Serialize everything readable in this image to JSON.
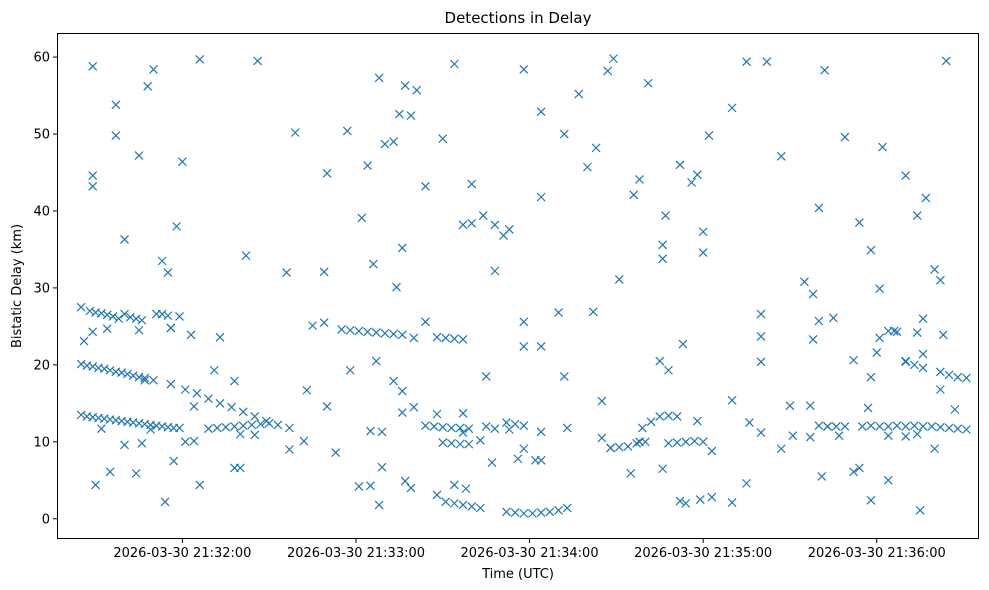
{
  "chart_data": {
    "type": "scatter",
    "title": "Detections in Delay",
    "xlabel": "Time (UTC)",
    "ylabel": "Bistatic Delay (km)",
    "marker": "x",
    "color": "#1f77b4",
    "grid": false,
    "legend": "none",
    "xlim": [
      "2026-03-30 21:31:17",
      "2026-03-30 21:36:35"
    ],
    "ylim": [
      -2.5,
      63
    ],
    "x_ticks": [
      "2026-03-30 21:32:00",
      "2026-03-30 21:33:00",
      "2026-03-30 21:34:00",
      "2026-03-30 21:35:00",
      "2026-03-30 21:36:00"
    ],
    "y_ticks": [
      0,
      10,
      20,
      30,
      40,
      50,
      60
    ],
    "points": [
      [
        "21:31:25",
        27.5
      ],
      [
        "21:31:28",
        27.0
      ],
      [
        "21:31:30",
        26.8
      ],
      [
        "21:31:32",
        26.7
      ],
      [
        "21:31:34",
        26.5
      ],
      [
        "21:31:36",
        26.3
      ],
      [
        "21:31:38",
        26.0
      ],
      [
        "21:31:40",
        26.6
      ],
      [
        "21:31:42",
        26.2
      ],
      [
        "21:31:44",
        26.0
      ],
      [
        "21:31:46",
        25.8
      ],
      [
        "21:31:51",
        26.6
      ],
      [
        "21:31:53",
        26.6
      ],
      [
        "21:31:55",
        26.4
      ],
      [
        "21:31:59",
        26.3
      ],
      [
        "21:31:25",
        20.1
      ],
      [
        "21:31:27",
        19.9
      ],
      [
        "21:31:29",
        19.8
      ],
      [
        "21:31:31",
        19.6
      ],
      [
        "21:31:33",
        19.5
      ],
      [
        "21:31:35",
        19.3
      ],
      [
        "21:31:37",
        19.1
      ],
      [
        "21:31:39",
        19.0
      ],
      [
        "21:31:41",
        18.8
      ],
      [
        "21:31:43",
        18.6
      ],
      [
        "21:31:45",
        18.4
      ],
      [
        "21:31:47",
        18.3
      ],
      [
        "21:31:50",
        18.0
      ],
      [
        "21:31:56",
        17.5
      ],
      [
        "21:32:01",
        16.8
      ],
      [
        "21:32:05",
        16.3
      ],
      [
        "21:32:09",
        15.6
      ],
      [
        "21:32:13",
        15.0
      ],
      [
        "21:32:17",
        14.5
      ],
      [
        "21:32:21",
        13.9
      ],
      [
        "21:32:25",
        13.3
      ],
      [
        "21:32:29",
        12.7
      ],
      [
        "21:32:33",
        12.2
      ],
      [
        "21:32:37",
        11.8
      ],
      [
        "21:31:25",
        13.5
      ],
      [
        "21:31:27",
        13.3
      ],
      [
        "21:31:29",
        13.2
      ],
      [
        "21:31:31",
        13.1
      ],
      [
        "21:31:33",
        13.0
      ],
      [
        "21:31:35",
        12.9
      ],
      [
        "21:31:37",
        12.8
      ],
      [
        "21:31:39",
        12.7
      ],
      [
        "21:31:41",
        12.6
      ],
      [
        "21:31:43",
        12.5
      ],
      [
        "21:31:45",
        12.4
      ],
      [
        "21:31:47",
        12.3
      ],
      [
        "21:31:49",
        12.2
      ],
      [
        "21:31:51",
        12.1
      ],
      [
        "21:31:53",
        12.0
      ],
      [
        "21:31:55",
        11.9
      ],
      [
        "21:31:57",
        11.8
      ],
      [
        "21:31:59",
        11.8
      ],
      [
        "21:32:09",
        11.7
      ],
      [
        "21:32:12",
        11.8
      ],
      [
        "21:32:15",
        11.9
      ],
      [
        "21:32:18",
        12.0
      ],
      [
        "21:32:21",
        12.1
      ],
      [
        "21:32:24",
        12.2
      ],
      [
        "21:32:27",
        12.3
      ],
      [
        "21:32:30",
        12.4
      ],
      [
        "21:32:55",
        24.6
      ],
      [
        "21:32:58",
        24.5
      ],
      [
        "21:33:01",
        24.4
      ],
      [
        "21:33:04",
        24.3
      ],
      [
        "21:33:07",
        24.2
      ],
      [
        "21:33:10",
        24.1
      ],
      [
        "21:33:13",
        24.0
      ],
      [
        "21:33:16",
        23.9
      ],
      [
        "21:33:28",
        23.6
      ],
      [
        "21:33:31",
        23.5
      ],
      [
        "21:33:34",
        23.4
      ],
      [
        "21:33:37",
        23.3
      ],
      [
        "21:33:27",
        12.0
      ],
      [
        "21:33:30",
        11.9
      ],
      [
        "21:33:33",
        11.8
      ],
      [
        "21:33:36",
        11.8
      ],
      [
        "21:33:39",
        11.7
      ],
      [
        "21:33:30",
        9.9
      ],
      [
        "21:33:33",
        9.8
      ],
      [
        "21:33:36",
        9.7
      ],
      [
        "21:33:39",
        9.7
      ],
      [
        "21:33:31",
        2.2
      ],
      [
        "21:33:34",
        2.0
      ],
      [
        "21:33:37",
        1.8
      ],
      [
        "21:33:40",
        1.6
      ],
      [
        "21:33:43",
        1.4
      ],
      [
        "21:33:52",
        0.9
      ],
      [
        "21:33:55",
        0.8
      ],
      [
        "21:33:58",
        0.7
      ],
      [
        "21:34:01",
        0.7
      ],
      [
        "21:34:04",
        0.8
      ],
      [
        "21:34:07",
        0.9
      ],
      [
        "21:34:10",
        1.1
      ],
      [
        "21:34:13",
        1.4
      ],
      [
        "21:33:52",
        12.5
      ],
      [
        "21:33:55",
        12.3
      ],
      [
        "21:33:58",
        12.1
      ],
      [
        "21:33:48",
        11.7
      ],
      [
        "21:33:45",
        12.0
      ],
      [
        "21:34:28",
        9.2
      ],
      [
        "21:34:31",
        9.3
      ],
      [
        "21:34:34",
        9.4
      ],
      [
        "21:34:37",
        9.8
      ],
      [
        "21:34:40",
        10.0
      ],
      [
        "21:34:45",
        13.3
      ],
      [
        "21:34:48",
        13.4
      ],
      [
        "21:34:51",
        13.3
      ],
      [
        "21:34:48",
        9.8
      ],
      [
        "21:34:51",
        9.9
      ],
      [
        "21:34:54",
        10.0
      ],
      [
        "21:34:57",
        10.1
      ],
      [
        "21:35:00",
        10.0
      ],
      [
        "21:35:55",
        12.0
      ],
      [
        "21:35:58",
        12.1
      ],
      [
        "21:36:01",
        12.0
      ],
      [
        "21:36:04",
        12.0
      ],
      [
        "21:36:07",
        12.1
      ],
      [
        "21:36:10",
        12.0
      ],
      [
        "21:36:13",
        12.1
      ],
      [
        "21:36:16",
        12.0
      ],
      [
        "21:36:19",
        12.0
      ],
      [
        "21:36:22",
        11.9
      ],
      [
        "21:36:25",
        11.8
      ],
      [
        "21:36:28",
        11.7
      ],
      [
        "21:36:31",
        11.6
      ],
      [
        "21:35:40",
        12.1
      ],
      [
        "21:35:43",
        12.0
      ],
      [
        "21:35:46",
        12.0
      ],
      [
        "21:35:49",
        12.0
      ],
      [
        "21:36:04",
        24.4
      ],
      [
        "21:36:07",
        24.3
      ],
      [
        "21:36:10",
        20.5
      ],
      [
        "21:36:13",
        20.0
      ],
      [
        "21:36:16",
        19.6
      ],
      [
        "21:36:22",
        19.1
      ],
      [
        "21:36:25",
        18.7
      ],
      [
        "21:36:28",
        18.4
      ],
      [
        "21:36:31",
        18.3
      ],
      [
        "21:31:29",
        58.8
      ],
      [
        "21:31:29",
        44.6
      ],
      [
        "21:31:29",
        43.2
      ],
      [
        "21:31:37",
        53.8
      ],
      [
        "21:31:37",
        49.8
      ],
      [
        "21:31:40",
        36.3
      ],
      [
        "21:31:45",
        47.2
      ],
      [
        "21:31:48",
        56.2
      ],
      [
        "21:31:50",
        58.4
      ],
      [
        "21:31:55",
        32.0
      ],
      [
        "21:31:58",
        38.0
      ],
      [
        "21:32:00",
        46.4
      ],
      [
        "21:32:06",
        59.7
      ],
      [
        "21:32:22",
        34.2
      ],
      [
        "21:32:26",
        59.5
      ],
      [
        "21:32:36",
        32.0
      ],
      [
        "21:32:39",
        50.2
      ],
      [
        "21:32:50",
        44.9
      ],
      [
        "21:32:57",
        50.4
      ],
      [
        "21:33:02",
        39.1
      ],
      [
        "21:33:04",
        45.9
      ],
      [
        "21:33:06",
        33.1
      ],
      [
        "21:33:08",
        57.3
      ],
      [
        "21:33:10",
        48.7
      ],
      [
        "21:33:13",
        49.0
      ],
      [
        "21:33:15",
        52.6
      ],
      [
        "21:33:17",
        56.3
      ],
      [
        "21:33:19",
        52.4
      ],
      [
        "21:33:21",
        55.7
      ],
      [
        "21:33:24",
        43.2
      ],
      [
        "21:33:30",
        49.4
      ],
      [
        "21:33:34",
        59.1
      ],
      [
        "21:33:37",
        38.2
      ],
      [
        "21:33:40",
        43.5
      ],
      [
        "21:33:44",
        39.4
      ],
      [
        "21:33:48",
        38.2
      ],
      [
        "21:33:51",
        36.8
      ],
      [
        "21:33:58",
        58.4
      ],
      [
        "21:34:04",
        52.9
      ],
      [
        "21:34:04",
        41.8
      ],
      [
        "21:34:12",
        50.0
      ],
      [
        "21:34:17",
        55.2
      ],
      [
        "21:34:20",
        45.7
      ],
      [
        "21:34:23",
        48.2
      ],
      [
        "21:34:27",
        58.2
      ],
      [
        "21:34:29",
        59.8
      ],
      [
        "21:34:36",
        42.1
      ],
      [
        "21:34:38",
        44.1
      ],
      [
        "21:34:41",
        56.6
      ],
      [
        "21:34:47",
        39.4
      ],
      [
        "21:34:52",
        46.0
      ],
      [
        "21:34:56",
        43.7
      ],
      [
        "21:34:58",
        44.7
      ],
      [
        "21:35:02",
        49.8
      ],
      [
        "21:35:10",
        53.4
      ],
      [
        "21:35:15",
        59.4
      ],
      [
        "21:35:22",
        59.4
      ],
      [
        "21:35:27",
        47.1
      ],
      [
        "21:35:35",
        30.8
      ],
      [
        "21:35:40",
        40.4
      ],
      [
        "21:35:42",
        58.3
      ],
      [
        "21:35:49",
        49.6
      ],
      [
        "21:35:58",
        34.9
      ],
      [
        "21:36:02",
        48.3
      ],
      [
        "21:36:10",
        44.6
      ],
      [
        "21:36:14",
        39.4
      ],
      [
        "21:36:17",
        41.7
      ],
      [
        "21:36:20",
        32.4
      ],
      [
        "21:36:24",
        59.5
      ],
      [
        "21:31:26",
        23.1
      ],
      [
        "21:31:29",
        24.3
      ],
      [
        "21:31:34",
        24.7
      ],
      [
        "21:31:45",
        24.5
      ],
      [
        "21:31:53",
        33.5
      ],
      [
        "21:31:56",
        24.8
      ],
      [
        "21:32:03",
        23.9
      ],
      [
        "21:32:13",
        23.6
      ],
      [
        "21:32:45",
        25.1
      ],
      [
        "21:32:49",
        32.1
      ],
      [
        "21:32:49",
        25.5
      ],
      [
        "21:33:14",
        30.1
      ],
      [
        "21:33:16",
        35.2
      ],
      [
        "21:33:20",
        23.5
      ],
      [
        "21:33:24",
        25.6
      ],
      [
        "21:33:40",
        38.4
      ],
      [
        "21:33:48",
        32.2
      ],
      [
        "21:33:53",
        37.6
      ],
      [
        "21:33:58",
        25.6
      ],
      [
        "21:34:10",
        26.8
      ],
      [
        "21:34:22",
        26.9
      ],
      [
        "21:34:31",
        31.1
      ],
      [
        "21:34:46",
        35.6
      ],
      [
        "21:34:46",
        33.8
      ],
      [
        "21:35:00",
        37.3
      ],
      [
        "21:35:00",
        34.6
      ],
      [
        "21:35:20",
        26.6
      ],
      [
        "21:35:38",
        29.2
      ],
      [
        "21:35:40",
        25.7
      ],
      [
        "21:35:45",
        26.1
      ],
      [
        "21:35:54",
        38.5
      ],
      [
        "21:36:01",
        29.9
      ],
      [
        "21:36:06",
        24.4
      ],
      [
        "21:36:14",
        24.2
      ],
      [
        "21:36:16",
        26.0
      ],
      [
        "21:36:22",
        31.0
      ],
      [
        "21:36:23",
        23.9
      ],
      [
        "21:31:30",
        4.4
      ],
      [
        "21:31:35",
        6.1
      ],
      [
        "21:31:44",
        5.9
      ],
      [
        "21:31:54",
        2.2
      ],
      [
        "21:31:57",
        7.5
      ],
      [
        "21:32:06",
        4.4
      ],
      [
        "21:32:18",
        6.6
      ],
      [
        "21:32:20",
        6.6
      ],
      [
        "21:32:53",
        8.6
      ],
      [
        "21:33:01",
        4.2
      ],
      [
        "21:33:05",
        4.3
      ],
      [
        "21:33:08",
        1.8
      ],
      [
        "21:33:09",
        6.7
      ],
      [
        "21:33:17",
        4.9
      ],
      [
        "21:33:19",
        4.0
      ],
      [
        "21:33:28",
        3.1
      ],
      [
        "21:33:34",
        4.4
      ],
      [
        "21:33:38",
        3.9
      ],
      [
        "21:33:47",
        7.3
      ],
      [
        "21:33:56",
        7.8
      ],
      [
        "21:33:58",
        9.1
      ],
      [
        "21:34:02",
        7.6
      ],
      [
        "21:34:04",
        7.6
      ],
      [
        "21:34:28",
        9.2
      ],
      [
        "21:34:35",
        5.9
      ],
      [
        "21:34:39",
        11.8
      ],
      [
        "21:34:46",
        6.5
      ],
      [
        "21:34:52",
        2.3
      ],
      [
        "21:34:54",
        2.0
      ],
      [
        "21:34:59",
        2.5
      ],
      [
        "21:35:03",
        2.8
      ],
      [
        "21:35:10",
        2.1
      ],
      [
        "21:35:15",
        4.6
      ],
      [
        "21:35:27",
        9.1
      ],
      [
        "21:35:37",
        10.6
      ],
      [
        "21:35:41",
        5.5
      ],
      [
        "21:35:47",
        10.8
      ],
      [
        "21:35:52",
        6.1
      ],
      [
        "21:35:54",
        6.6
      ],
      [
        "21:35:58",
        2.4
      ],
      [
        "21:36:04",
        5.0
      ],
      [
        "21:36:15",
        1.1
      ],
      [
        "21:36:20",
        9.1
      ],
      [
        "21:31:32",
        11.7
      ],
      [
        "21:31:40",
        9.6
      ],
      [
        "21:31:46",
        9.8
      ],
      [
        "21:31:49",
        11.6
      ],
      [
        "21:32:01",
        10.0
      ],
      [
        "21:32:04",
        10.1
      ],
      [
        "21:32:20",
        11.0
      ],
      [
        "21:32:25",
        10.9
      ],
      [
        "21:32:37",
        9.0
      ],
      [
        "21:32:42",
        10.1
      ],
      [
        "21:33:05",
        11.4
      ],
      [
        "21:33:09",
        11.3
      ],
      [
        "21:33:16",
        13.8
      ],
      [
        "21:33:24",
        12.1
      ],
      [
        "21:33:28",
        13.6
      ],
      [
        "21:33:37",
        11.2
      ],
      [
        "21:33:43",
        10.2
      ],
      [
        "21:33:53",
        11.6
      ],
      [
        "21:34:04",
        11.3
      ],
      [
        "21:34:13",
        11.8
      ],
      [
        "21:34:25",
        10.5
      ],
      [
        "21:34:38",
        10.0
      ],
      [
        "21:34:42",
        12.6
      ],
      [
        "21:34:58",
        12.7
      ],
      [
        "21:35:03",
        8.8
      ],
      [
        "21:35:16",
        12.5
      ],
      [
        "21:35:20",
        11.2
      ],
      [
        "21:35:31",
        10.8
      ],
      [
        "21:35:37",
        14.7
      ],
      [
        "21:35:43",
        12.0
      ],
      [
        "21:36:04",
        10.8
      ],
      [
        "21:36:10",
        10.7
      ],
      [
        "21:36:14",
        11.0
      ],
      [
        "21:31:47",
        18.0
      ],
      [
        "21:31:56",
        24.8
      ],
      [
        "21:32:04",
        14.6
      ],
      [
        "21:32:11",
        19.3
      ],
      [
        "21:32:18",
        17.9
      ],
      [
        "21:32:43",
        16.7
      ],
      [
        "21:32:50",
        14.6
      ],
      [
        "21:32:58",
        19.3
      ],
      [
        "21:33:07",
        20.5
      ],
      [
        "21:33:13",
        17.9
      ],
      [
        "21:33:16",
        16.6
      ],
      [
        "21:33:20",
        14.5
      ],
      [
        "21:33:37",
        13.7
      ],
      [
        "21:33:45",
        18.5
      ],
      [
        "21:33:58",
        22.4
      ],
      [
        "21:34:04",
        22.4
      ],
      [
        "21:34:12",
        18.5
      ],
      [
        "21:34:25",
        15.3
      ],
      [
        "21:34:45",
        20.5
      ],
      [
        "21:34:48",
        19.3
      ],
      [
        "21:34:53",
        22.7
      ],
      [
        "21:35:10",
        15.4
      ],
      [
        "21:35:20",
        20.4
      ],
      [
        "21:35:20",
        23.7
      ],
      [
        "21:35:30",
        14.7
      ],
      [
        "21:35:38",
        23.3
      ],
      [
        "21:35:52",
        20.6
      ],
      [
        "21:35:58",
        18.4
      ],
      [
        "21:36:10",
        20.4
      ],
      [
        "21:36:16",
        21.4
      ],
      [
        "21:36:22",
        16.8
      ],
      [
        "21:36:27",
        14.2
      ],
      [
        "21:36:00",
        21.6
      ],
      [
        "21:36:01",
        23.5
      ],
      [
        "21:35:57",
        14.4
      ]
    ]
  }
}
